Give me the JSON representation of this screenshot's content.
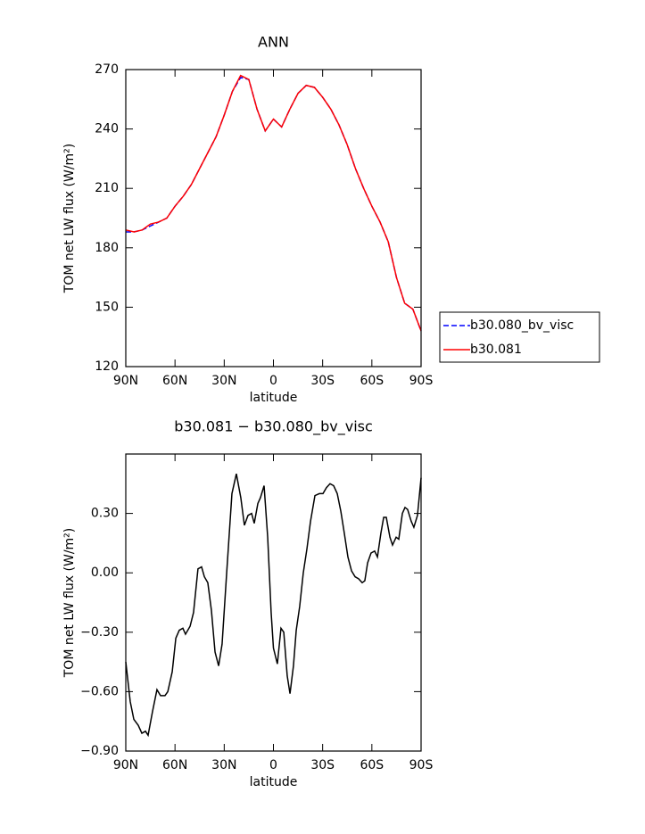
{
  "chart_data": [
    {
      "type": "line",
      "title": "ANN",
      "xlabel": "latitude",
      "ylabel": "TOM net LW flux (W/m²)",
      "x": [
        90,
        85,
        80,
        75,
        70,
        65,
        60,
        55,
        50,
        45,
        40,
        35,
        30,
        25,
        20,
        15,
        10,
        5,
        0,
        -5,
        -10,
        -15,
        -20,
        -25,
        -30,
        -35,
        -40,
        -45,
        -50,
        -55,
        -60,
        -65,
        -70,
        -75,
        -80,
        -85,
        -90
      ],
      "series": [
        {
          "name": "b30.080_bv_visc",
          "color": "#0000ff",
          "dash": "dashed",
          "values": [
            188,
            188,
            189,
            191,
            193,
            195,
            201,
            206,
            212,
            220,
            228,
            236,
            247,
            259,
            266,
            265,
            250,
            239,
            245,
            241,
            250,
            258,
            262,
            261,
            256,
            250,
            242,
            232,
            220,
            210,
            201,
            193,
            183,
            165,
            152,
            149,
            138
          ]
        },
        {
          "name": "b30.081",
          "color": "#ff0000",
          "dash": "solid",
          "values": [
            189,
            188,
            189,
            192,
            193,
            195,
            201,
            206,
            212,
            220,
            228,
            236,
            247,
            259,
            267,
            265,
            250,
            239,
            245,
            241,
            250,
            258,
            262,
            261,
            256,
            250,
            242,
            232,
            220,
            210,
            201,
            193,
            183,
            165,
            152,
            149,
            138
          ]
        }
      ],
      "xlim": [
        90,
        -90
      ],
      "xticks": [
        {
          "value": 90,
          "label": "90N"
        },
        {
          "value": 60,
          "label": "60N"
        },
        {
          "value": 30,
          "label": "30N"
        },
        0,
        {
          "value": -30,
          "label": "30S"
        },
        {
          "value": -60,
          "label": "60S"
        },
        {
          "value": -90,
          "label": "90S"
        }
      ],
      "ylim": [
        120,
        270
      ],
      "yticks": [
        120,
        150,
        180,
        210,
        240,
        270
      ],
      "legend": "right"
    },
    {
      "type": "line",
      "title": "b30.081 − b30.080_bv_visc",
      "xlabel": "latitude",
      "ylabel": "TOM net LW flux (W/m²)",
      "x": [
        90,
        87.3,
        85.1,
        82.4,
        80.2,
        78,
        76.4,
        73.7,
        71,
        68.8,
        66.1,
        64.4,
        61.7,
        59.5,
        57.4,
        55.2,
        53.6,
        50.8,
        48.7,
        46,
        43.8,
        42.1,
        40,
        37.8,
        35.6,
        33.4,
        31.3,
        28.5,
        25.3,
        22.6,
        19.9,
        17.7,
        15.5,
        13.3,
        11.7,
        9.5,
        7.9,
        5.7,
        3.5,
        1.4,
        0,
        -2.4,
        -4.6,
        -6.3,
        -8.4,
        -10.1,
        -12.2,
        -13.9,
        -16,
        -18.2,
        -20.4,
        -22.6,
        -25.3,
        -28,
        -30.2,
        -32.3,
        -34.5,
        -36.7,
        -38.9,
        -41.1,
        -43.2,
        -45.4,
        -47.6,
        -49.8,
        -51.9,
        -54.1,
        -55.7,
        -57.4,
        -59.5,
        -61.7,
        -63.4,
        -65.5,
        -67.2,
        -68.8,
        -71,
        -72.6,
        -74.8,
        -76.4,
        -78.6,
        -80.2,
        -81.8,
        -84,
        -85.6,
        -87.8,
        -90
      ],
      "series": [
        {
          "color": "#000000",
          "dash": "solid",
          "values": [
            -0.45,
            -0.65,
            -0.74,
            -0.77,
            -0.81,
            -0.8,
            -0.82,
            -0.7,
            -0.59,
            -0.62,
            -0.62,
            -0.6,
            -0.5,
            -0.33,
            -0.29,
            -0.28,
            -0.31,
            -0.27,
            -0.2,
            0.02,
            0.03,
            -0.02,
            -0.05,
            -0.19,
            -0.4,
            -0.47,
            -0.36,
            0,
            0.4,
            0.5,
            0.38,
            0.24,
            0.29,
            0.3,
            0.25,
            0.35,
            0.38,
            0.44,
            0.18,
            -0.2,
            -0.38,
            -0.46,
            -0.28,
            -0.3,
            -0.52,
            -0.61,
            -0.47,
            -0.29,
            -0.17,
            0,
            0.12,
            0.26,
            0.39,
            0.4,
            0.4,
            0.43,
            0.45,
            0.44,
            0.4,
            0.31,
            0.2,
            0.08,
            0.01,
            -0.02,
            -0.03,
            -0.05,
            -0.04,
            0.05,
            0.1,
            0.11,
            0.08,
            0.2,
            0.28,
            0.28,
            0.18,
            0.14,
            0.18,
            0.17,
            0.3,
            0.33,
            0.32,
            0.26,
            0.23,
            0.29,
            0.48
          ]
        }
      ],
      "xlim": [
        90,
        -90
      ],
      "xticks": [
        {
          "value": 90,
          "label": "90N"
        },
        {
          "value": 60,
          "label": "60N"
        },
        {
          "value": 30,
          "label": "30N"
        },
        0,
        {
          "value": -30,
          "label": "30S"
        },
        {
          "value": -60,
          "label": "60S"
        },
        {
          "value": -90,
          "label": "90S"
        }
      ],
      "ylim": [
        -0.9,
        0.6
      ],
      "yticks": [
        {
          "value": -0.9,
          "label": "−0.90"
        },
        {
          "value": -0.6,
          "label": "−0.60"
        },
        {
          "value": -0.3,
          "label": "−0.30"
        },
        {
          "value": 0,
          "label": "0.00"
        },
        {
          "value": 0.3,
          "label": "0.30"
        }
      ]
    }
  ]
}
